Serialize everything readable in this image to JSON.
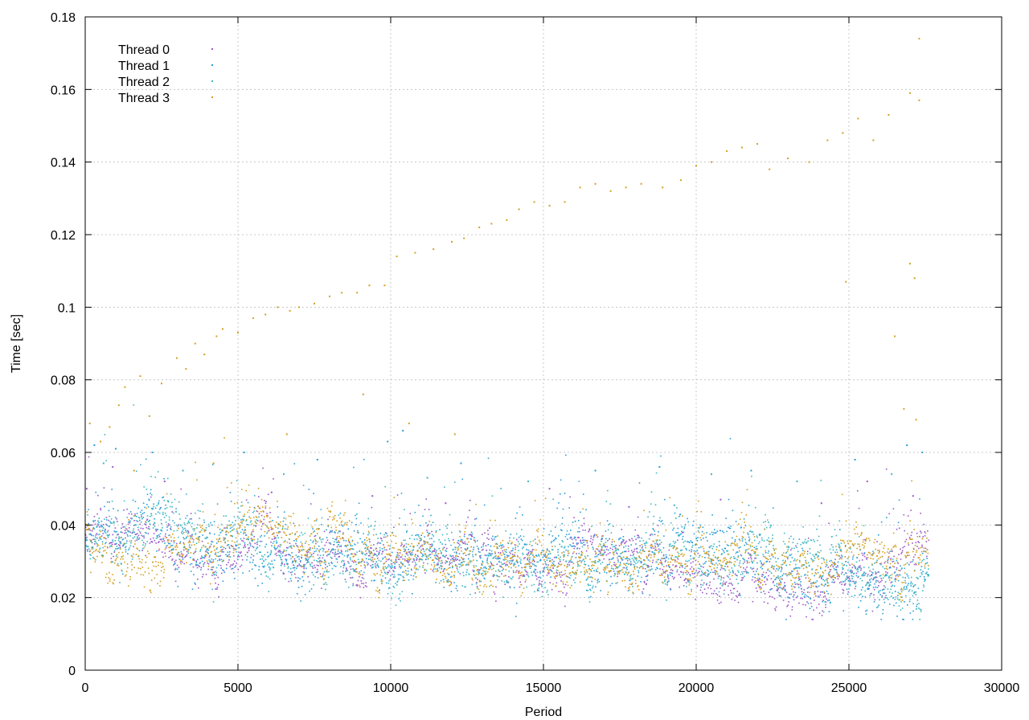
{
  "chart_data": {
    "type": "scatter",
    "title": "",
    "xlabel": "Period",
    "ylabel": "Time [sec]",
    "xlim": [
      0,
      30000
    ],
    "ylim": [
      0,
      0.18
    ],
    "xticks": [
      0,
      5000,
      10000,
      15000,
      20000,
      25000,
      30000
    ],
    "xtick_labels": [
      "0",
      "5000",
      "10000",
      "15000",
      "20000",
      "25000",
      "30000"
    ],
    "yticks": [
      0,
      0.02,
      0.04,
      0.06,
      0.08,
      0.1,
      0.12,
      0.14,
      0.16,
      0.18
    ],
    "ytick_labels": [
      "0",
      "0.02",
      "0.04",
      "0.06",
      "0.08",
      "0.1",
      "0.12",
      "0.14",
      "0.16",
      "0.18"
    ],
    "grid": true,
    "legend_position": "top-left",
    "marker": "dot",
    "n_periods": 27600,
    "series": [
      {
        "name": "Thread 0",
        "color": "#9b59c8",
        "baseline_trend": [
          [
            0,
            0.036
          ],
          [
            5000,
            0.032
          ],
          [
            10000,
            0.031
          ],
          [
            15000,
            0.029
          ],
          [
            20000,
            0.029
          ],
          [
            25000,
            0.027
          ],
          [
            27600,
            0.027
          ]
        ],
        "spread": 0.004,
        "low_dips": [
          [
            4300,
            0.024
          ],
          [
            9000,
            0.023
          ],
          [
            12800,
            0.022
          ],
          [
            13400,
            0.022
          ],
          [
            15700,
            0.021
          ],
          [
            18300,
            0.023
          ],
          [
            22200,
            0.022
          ],
          [
            26100,
            0.022
          ]
        ],
        "outliers": [
          [
            50,
            0.05
          ],
          [
            900,
            0.056
          ],
          [
            2600,
            0.052
          ],
          [
            6100,
            0.049
          ],
          [
            9400,
            0.048
          ],
          [
            11800,
            0.046
          ],
          [
            15200,
            0.05
          ],
          [
            17800,
            0.045
          ],
          [
            20800,
            0.047
          ],
          [
            24100,
            0.046
          ],
          [
            25600,
            0.052
          ],
          [
            27100,
            0.048
          ]
        ]
      },
      {
        "name": "Thread 1",
        "color": "#2a9fd8",
        "baseline_trend": [
          [
            0,
            0.038
          ],
          [
            5000,
            0.034
          ],
          [
            10000,
            0.033
          ],
          [
            15000,
            0.031
          ],
          [
            20000,
            0.031
          ],
          [
            25000,
            0.029
          ],
          [
            27600,
            0.029
          ]
        ],
        "spread": 0.006,
        "low_dips": [
          [
            3500,
            0.027
          ],
          [
            7100,
            0.026
          ],
          [
            10300,
            0.025
          ],
          [
            14100,
            0.024
          ],
          [
            16500,
            0.022
          ],
          [
            19100,
            0.023
          ],
          [
            22900,
            0.021
          ],
          [
            24300,
            0.022
          ],
          [
            27200,
            0.021
          ]
        ],
        "outliers": [
          [
            300,
            0.062
          ],
          [
            1000,
            0.061
          ],
          [
            2200,
            0.06
          ],
          [
            5200,
            0.06
          ],
          [
            7600,
            0.058
          ],
          [
            9900,
            0.063
          ],
          [
            10400,
            0.066
          ],
          [
            12300,
            0.057
          ],
          [
            16700,
            0.055
          ],
          [
            18800,
            0.056
          ],
          [
            21800,
            0.055
          ],
          [
            25200,
            0.058
          ],
          [
            26900,
            0.062
          ],
          [
            27400,
            0.06
          ]
        ]
      },
      {
        "name": "Thread 2",
        "color": "#3fb8c2",
        "baseline_trend": [
          [
            0,
            0.037
          ],
          [
            5000,
            0.033
          ],
          [
            10000,
            0.032
          ],
          [
            15000,
            0.03
          ],
          [
            20000,
            0.03
          ],
          [
            25000,
            0.028
          ],
          [
            27600,
            0.028
          ]
        ],
        "spread": 0.005,
        "low_dips": [
          [
            4200,
            0.025
          ],
          [
            7900,
            0.026
          ],
          [
            10200,
            0.023
          ],
          [
            13900,
            0.024
          ],
          [
            16500,
            0.02
          ],
          [
            19000,
            0.022
          ],
          [
            22700,
            0.02
          ],
          [
            24200,
            0.021
          ],
          [
            27300,
            0.019
          ]
        ],
        "outliers": [
          [
            600,
            0.057
          ],
          [
            3200,
            0.055
          ],
          [
            6500,
            0.054
          ],
          [
            11200,
            0.053
          ],
          [
            14500,
            0.052
          ],
          [
            20500,
            0.054
          ],
          [
            23300,
            0.052
          ],
          [
            26400,
            0.054
          ]
        ]
      },
      {
        "name": "Thread 3",
        "color": "#d4a020",
        "baseline_trend": [
          [
            0,
            0.037
          ],
          [
            5000,
            0.034
          ],
          [
            10000,
            0.033
          ],
          [
            15000,
            0.031
          ],
          [
            20000,
            0.03
          ],
          [
            25000,
            0.028
          ],
          [
            27600,
            0.028
          ]
        ],
        "spread": 0.004,
        "low_dips": [
          [
            800,
            0.026
          ],
          [
            7800,
            0.023
          ],
          [
            9600,
            0.022
          ],
          [
            11900,
            0.023
          ],
          [
            14300,
            0.021
          ],
          [
            17100,
            0.024
          ],
          [
            19800,
            0.022
          ],
          [
            22100,
            0.021
          ],
          [
            26700,
            0.02
          ]
        ],
        "outliers": [
          [
            150,
            0.068
          ],
          [
            500,
            0.063
          ],
          [
            800,
            0.067
          ],
          [
            1100,
            0.073
          ],
          [
            1300,
            0.078
          ],
          [
            1800,
            0.081
          ],
          [
            2100,
            0.07
          ],
          [
            2500,
            0.079
          ],
          [
            3000,
            0.086
          ],
          [
            3300,
            0.083
          ],
          [
            3600,
            0.09
          ],
          [
            3900,
            0.087
          ],
          [
            4300,
            0.092
          ],
          [
            4500,
            0.094
          ],
          [
            5000,
            0.093
          ],
          [
            5500,
            0.097
          ],
          [
            5900,
            0.098
          ],
          [
            6300,
            0.1
          ],
          [
            6700,
            0.099
          ],
          [
            7000,
            0.1
          ],
          [
            7500,
            0.101
          ],
          [
            8000,
            0.103
          ],
          [
            8400,
            0.104
          ],
          [
            8900,
            0.104
          ],
          [
            9300,
            0.106
          ],
          [
            9800,
            0.106
          ],
          [
            10200,
            0.114
          ],
          [
            10800,
            0.115
          ],
          [
            11400,
            0.116
          ],
          [
            12000,
            0.118
          ],
          [
            12400,
            0.119
          ],
          [
            12900,
            0.122
          ],
          [
            13300,
            0.123
          ],
          [
            13800,
            0.124
          ],
          [
            14200,
            0.127
          ],
          [
            14700,
            0.129
          ],
          [
            15200,
            0.128
          ],
          [
            15700,
            0.129
          ],
          [
            16200,
            0.133
          ],
          [
            16700,
            0.134
          ],
          [
            17200,
            0.132
          ],
          [
            17700,
            0.133
          ],
          [
            18200,
            0.134
          ],
          [
            18900,
            0.133
          ],
          [
            19500,
            0.135
          ],
          [
            20000,
            0.139
          ],
          [
            20500,
            0.14
          ],
          [
            21000,
            0.143
          ],
          [
            21500,
            0.144
          ],
          [
            22000,
            0.145
          ],
          [
            22400,
            0.138
          ],
          [
            23000,
            0.141
          ],
          [
            23700,
            0.14
          ],
          [
            24300,
            0.146
          ],
          [
            24800,
            0.148
          ],
          [
            25300,
            0.152
          ],
          [
            25800,
            0.146
          ],
          [
            26300,
            0.153
          ],
          [
            27000,
            0.159
          ],
          [
            27300,
            0.174
          ],
          [
            1600,
            0.055
          ],
          [
            4200,
            0.057
          ],
          [
            6600,
            0.065
          ],
          [
            9100,
            0.076
          ],
          [
            10600,
            0.068
          ],
          [
            12100,
            0.065
          ],
          [
            24900,
            0.107
          ],
          [
            26500,
            0.092
          ],
          [
            26800,
            0.072
          ],
          [
            27200,
            0.069
          ],
          [
            27000,
            0.112
          ],
          [
            27150,
            0.108
          ],
          [
            27300,
            0.157
          ]
        ]
      }
    ]
  }
}
